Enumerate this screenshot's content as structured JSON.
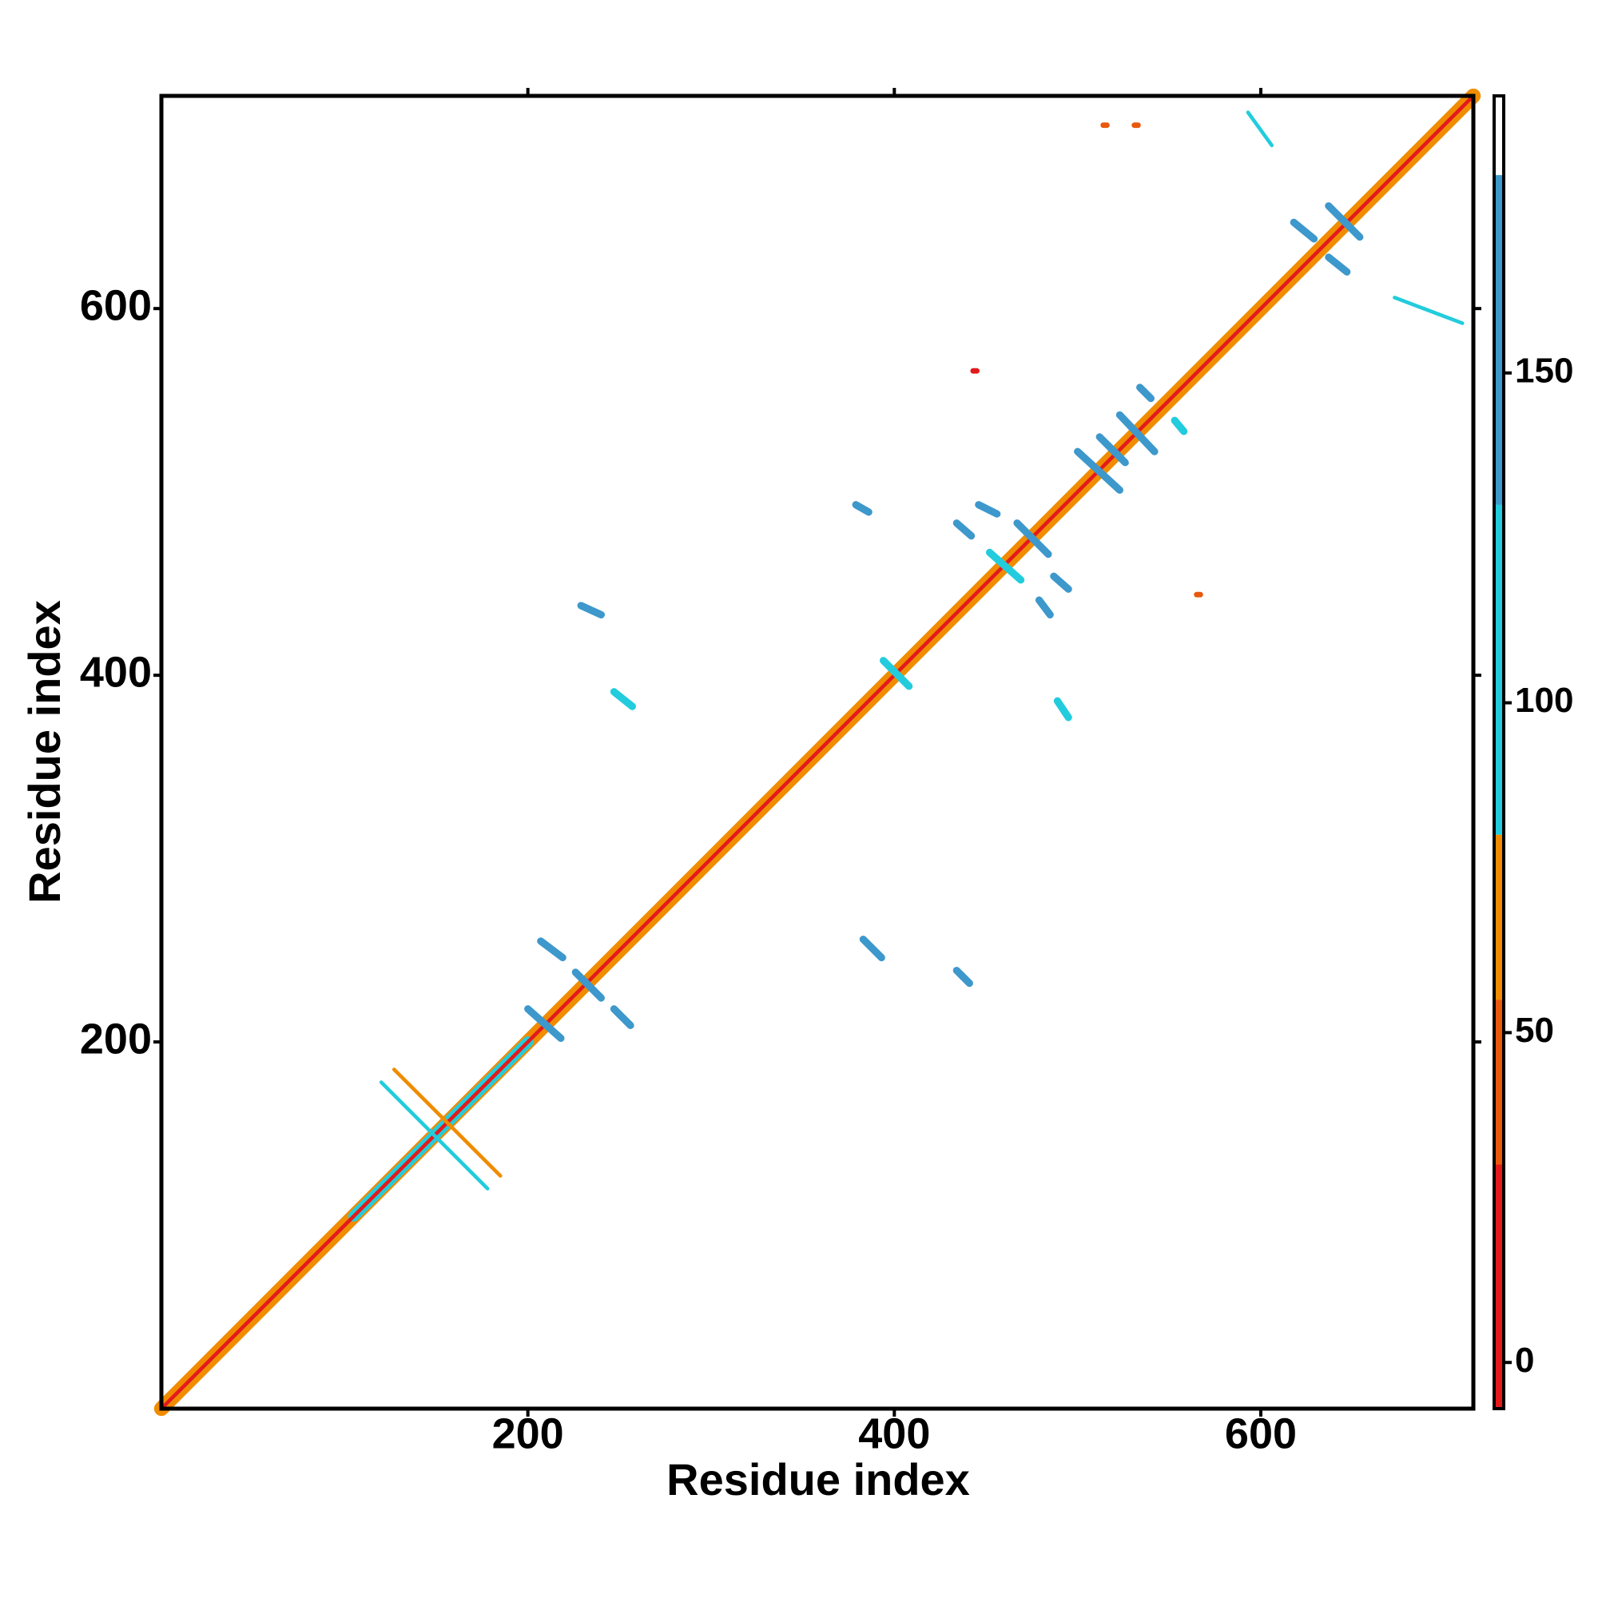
{
  "chart_data": {
    "type": "contact_map",
    "x_label": "Residue index",
    "y_label": "Residue index",
    "xlim": [
      0,
      716
    ],
    "ylim": [
      0,
      716
    ],
    "xticks": [
      200,
      400,
      600
    ],
    "yticks": [
      200,
      400,
      600
    ],
    "colorbar_lim": [
      -7,
      192
    ],
    "colorbar_ticks": [
      0,
      50,
      100,
      150
    ],
    "colorscale": [
      {
        "from": -7,
        "to": 30,
        "color": "#e31a1c"
      },
      {
        "from": 30,
        "to": 55,
        "color": "#e8590c"
      },
      {
        "from": 55,
        "to": 80,
        "color": "#f08c00"
      },
      {
        "from": 80,
        "to": 130,
        "color": "#22ccdc"
      },
      {
        "from": 130,
        "to": 180,
        "color": "#3d98cc"
      },
      {
        "from": 180,
        "to": 192,
        "color": "#ffffff"
      }
    ],
    "segments": [
      {
        "x": [
          0,
          716
        ],
        "y": [
          0,
          716
        ],
        "value": 60,
        "width": 8
      },
      {
        "x": [
          105,
          200
        ],
        "y": [
          105,
          200
        ],
        "value": 100,
        "width": 6
      },
      {
        "x": [
          0,
          716
        ],
        "y": [
          0,
          716
        ],
        "value": 5,
        "width": 2
      },
      {
        "x": [
          207,
          219
        ],
        "y": [
          255,
          246
        ],
        "value": 140,
        "width": 4
      },
      {
        "x": [
          200,
          218
        ],
        "y": [
          218,
          202
        ],
        "value": 140,
        "width": 4
      },
      {
        "x": [
          226,
          240
        ],
        "y": [
          238,
          224
        ],
        "value": 140,
        "width": 4
      },
      {
        "x": [
          247,
          256
        ],
        "y": [
          218,
          209
        ],
        "value": 140,
        "width": 4
      },
      {
        "x": [
          229,
          240
        ],
        "y": [
          438,
          433
        ],
        "value": 140,
        "width": 4
      },
      {
        "x": [
          247,
          257
        ],
        "y": [
          391,
          383
        ],
        "value": 120,
        "width": 4
      },
      {
        "x": [
          383,
          393
        ],
        "y": [
          256,
          246
        ],
        "value": 140,
        "width": 4
      },
      {
        "x": [
          434,
          441
        ],
        "y": [
          239,
          232
        ],
        "value": 140,
        "width": 4
      },
      {
        "x": [
          394,
          408
        ],
        "y": [
          408,
          394
        ],
        "value": 130,
        "width": 4
      },
      {
        "x": [
          379,
          386
        ],
        "y": [
          493,
          489
        ],
        "value": 140,
        "width": 4
      },
      {
        "x": [
          434,
          442
        ],
        "y": [
          483,
          476
        ],
        "value": 140,
        "width": 4
      },
      {
        "x": [
          446,
          456
        ],
        "y": [
          493,
          488
        ],
        "value": 140,
        "width": 4
      },
      {
        "x": [
          452,
          469
        ],
        "y": [
          467,
          452
        ],
        "value": 120,
        "width": 4
      },
      {
        "x": [
          467,
          484
        ],
        "y": [
          483,
          466
        ],
        "value": 140,
        "width": 4
      },
      {
        "x": [
          479,
          485
        ],
        "y": [
          441,
          433
        ],
        "value": 140,
        "width": 4
      },
      {
        "x": [
          487,
          495
        ],
        "y": [
          454,
          447
        ],
        "value": 140,
        "width": 4
      },
      {
        "x": [
          489,
          495
        ],
        "y": [
          386,
          377
        ],
        "value": 120,
        "width": 4
      },
      {
        "x": [
          500,
          523
        ],
        "y": [
          522,
          501
        ],
        "value": 140,
        "width": 4
      },
      {
        "x": [
          512,
          526
        ],
        "y": [
          530,
          516
        ],
        "value": 140,
        "width": 4
      },
      {
        "x": [
          523,
          542
        ],
        "y": [
          542,
          522
        ],
        "value": 140,
        "width": 4
      },
      {
        "x": [
          534,
          540
        ],
        "y": [
          557,
          551
        ],
        "value": 140,
        "width": 4
      },
      {
        "x": [
          553,
          558
        ],
        "y": [
          539,
          533
        ],
        "value": 130,
        "width": 4
      },
      {
        "x": [
          618,
          629
        ],
        "y": [
          647,
          638
        ],
        "value": 140,
        "width": 4
      },
      {
        "x": [
          637,
          654
        ],
        "y": [
          656,
          639
        ],
        "value": 140,
        "width": 4
      },
      {
        "x": [
          637,
          647
        ],
        "y": [
          628,
          620
        ],
        "value": 140,
        "width": 4
      },
      {
        "x": [
          593,
          606
        ],
        "y": [
          707,
          689
        ],
        "value": 100,
        "width": 2
      },
      {
        "x": [
          673,
          710
        ],
        "y": [
          606,
          592
        ],
        "value": 100,
        "width": 2
      },
      {
        "x": [
          127,
          185
        ],
        "y": [
          185,
          127
        ],
        "value": 60,
        "width": 2
      },
      {
        "x": [
          120,
          178
        ],
        "y": [
          178,
          120
        ],
        "value": 100,
        "width": 2
      },
      {
        "x": [
          514,
          516
        ],
        "y": [
          700,
          700
        ],
        "value": 40,
        "width": 3
      },
      {
        "x": [
          531,
          533
        ],
        "y": [
          700,
          700
        ],
        "value": 40,
        "width": 3
      },
      {
        "x": [
          443,
          445
        ],
        "y": [
          566,
          566
        ],
        "value": 30,
        "width": 3
      },
      {
        "x": [
          565,
          567
        ],
        "y": [
          444,
          444
        ],
        "value": 45,
        "width": 3
      }
    ]
  }
}
